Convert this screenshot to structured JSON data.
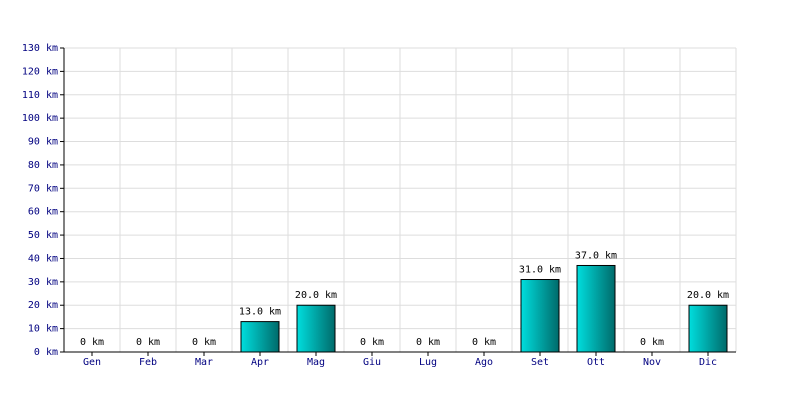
{
  "chart_data": {
    "type": "bar",
    "categories": [
      "Gen",
      "Feb",
      "Mar",
      "Apr",
      "Mag",
      "Giu",
      "Lug",
      "Ago",
      "Set",
      "Ott",
      "Nov",
      "Dic"
    ],
    "values": [
      0,
      0,
      0,
      13,
      20,
      0,
      0,
      0,
      31,
      37,
      0,
      20
    ],
    "value_labels": [
      "0 km",
      "0 km",
      "0 km",
      "13.0 km",
      "20.0 km",
      "0 km",
      "0 km",
      "0 km",
      "31.0 km",
      "37.0 km",
      "0 km",
      "20.0 km"
    ],
    "color": "#00dede",
    "ylim": [
      0,
      130
    ],
    "yticks": [
      {
        "value": 0,
        "label": "0 km"
      },
      {
        "value": 10,
        "label": "10 km"
      },
      {
        "value": 20,
        "label": "20 km"
      },
      {
        "value": 30,
        "label": "30 km"
      },
      {
        "value": 40,
        "label": "40 km"
      },
      {
        "value": 50,
        "label": "50 km"
      },
      {
        "value": 60,
        "label": "60 km"
      },
      {
        "value": 70,
        "label": "70 km"
      },
      {
        "value": 80,
        "label": "80 km"
      },
      {
        "value": 90,
        "label": "90 km"
      },
      {
        "value": 100,
        "label": "100 km"
      },
      {
        "value": 110,
        "label": "110 km"
      },
      {
        "value": 120,
        "label": "120 km"
      },
      {
        "value": 130,
        "label": "130 km"
      }
    ],
    "grid": true
  }
}
